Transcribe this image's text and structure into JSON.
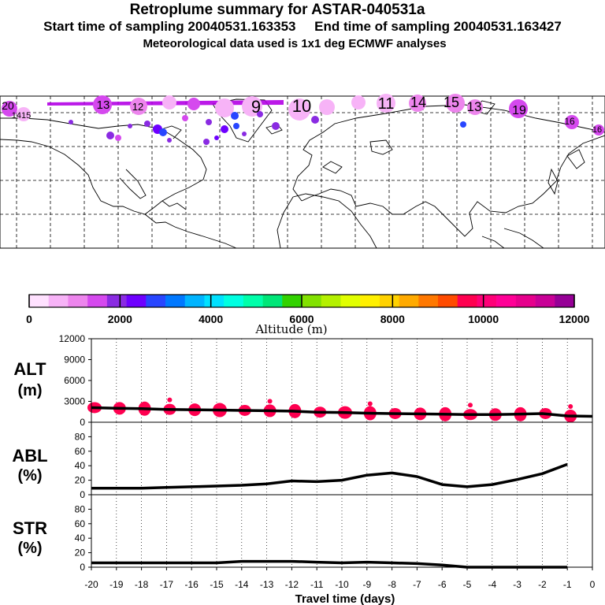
{
  "header": {
    "title": "Retroplume summary for ASTAR-040531a",
    "sampling": "Start time of sampling 20040531.163353     End time of sampling 20040531.163427",
    "met": "Meteorological data used is 1x1 deg ECMWF analyses"
  },
  "map": {
    "plume_labels": [
      "20",
      "1415",
      "13",
      "12",
      "9",
      "10",
      "11",
      "14",
      "15",
      "13",
      "19",
      "16",
      "16"
    ]
  },
  "colorbar": {
    "title": "Altitude (m)",
    "ticks": [
      "0",
      "2000",
      "4000",
      "6000",
      "8000",
      "10000",
      "12000"
    ],
    "colors": [
      "#ffe1ff",
      "#f7b3f7",
      "#ed85ed",
      "#d549ee",
      "#8a2be2",
      "#6e00ff",
      "#2846ff",
      "#0078ff",
      "#00b4ff",
      "#00e1ff",
      "#00ffe1",
      "#00ffaa",
      "#00e678",
      "#32d200",
      "#82e100",
      "#b4f000",
      "#e1ff00",
      "#fff000",
      "#ffd200",
      "#ffaa00",
      "#ff7800",
      "#ff4b00",
      "#ff0050",
      "#ff0078",
      "#ff0096",
      "#e6008c",
      "#c80096",
      "#960096"
    ]
  },
  "xaxis": {
    "label": "Travel time (days)",
    "ticks": [
      "-20",
      "-19",
      "-18",
      "-17",
      "-16",
      "-15",
      "-14",
      "-13",
      "-12",
      "-11",
      "-10",
      "-9",
      "-8",
      "-7",
      "-6",
      "-5",
      "-4",
      "-3",
      "-2",
      "-1",
      "0"
    ]
  },
  "chart_data": [
    {
      "type": "line",
      "name": "ALT",
      "ylabel": "ALT\n(m)",
      "ylabel_line1": "ALT",
      "ylabel_line2": "(m)",
      "ylim": [
        0,
        12000
      ],
      "yticks": [
        "12000",
        "9000",
        "6000",
        "3000",
        "0"
      ],
      "x": [
        -20,
        -19,
        -18,
        -17,
        -16,
        -15,
        -14,
        -13,
        -12,
        -11,
        -10,
        -9,
        -8,
        -7,
        -6,
        -5,
        -4,
        -3,
        -2,
        -1,
        0
      ],
      "values": [
        2100,
        2000,
        1950,
        1850,
        1800,
        1750,
        1700,
        1650,
        1600,
        1450,
        1400,
        1300,
        1250,
        1200,
        1150,
        1100,
        1100,
        1150,
        1250,
        900,
        850
      ],
      "spread_markers_color": "#ff0050"
    },
    {
      "type": "line",
      "name": "ABL",
      "ylabel_line1": "ABL",
      "ylabel_line2": "(%)",
      "ylim": [
        0,
        100
      ],
      "yticks": [
        "80",
        "60",
        "40",
        "20",
        "0"
      ],
      "x": [
        -20,
        -19,
        -18,
        -17,
        -16,
        -15,
        -14,
        -13,
        -12,
        -11,
        -10,
        -9,
        -8,
        -7,
        -6,
        -5,
        -4,
        -3,
        -2,
        -1
      ],
      "values": [
        9,
        9,
        9,
        10,
        11,
        12,
        13,
        15,
        19,
        18,
        20,
        27,
        30,
        25,
        14,
        11,
        14,
        21,
        29,
        42
      ]
    },
    {
      "type": "line",
      "name": "STR",
      "ylabel_line1": "STR",
      "ylabel_line2": "(%)",
      "ylim": [
        0,
        100
      ],
      "yticks": [
        "80",
        "60",
        "40",
        "20",
        "0"
      ],
      "x": [
        -20,
        -19,
        -18,
        -17,
        -16,
        -15,
        -14,
        -13,
        -12,
        -11,
        -10,
        -9,
        -8,
        -7,
        -6,
        -5,
        -4,
        -3,
        -2,
        -1
      ],
      "values": [
        6,
        6,
        6,
        6,
        6,
        6,
        8,
        8,
        8,
        7,
        6,
        7,
        6,
        5,
        3,
        0,
        0,
        0,
        0,
        0
      ]
    }
  ]
}
